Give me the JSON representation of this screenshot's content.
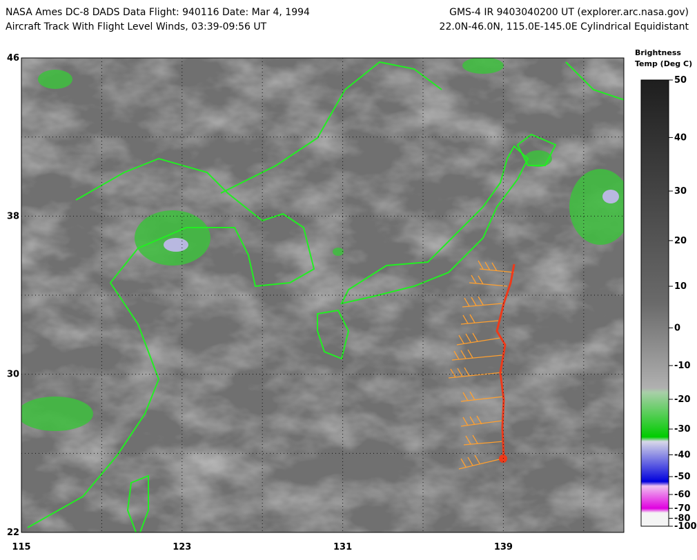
{
  "header": {
    "left_line1": "NASA Ames DC-8 DADS Data  Flight: 940116  Date: Mar 4, 1994",
    "left_line2": "Aircraft Track With Flight Level Winds, 03:39-09:56 UT",
    "right_line1": "GMS-4 IR 9403040200 UT (explorer.arc.nasa.gov)",
    "right_line2": "22.0N-46.0N, 115.0E-145.0E Cylindrical Equidistant"
  },
  "map": {
    "lat_range": [
      22,
      46
    ],
    "lon_range": [
      115,
      145
    ],
    "lat_ticks": [
      46,
      38,
      30,
      22
    ],
    "lon_ticks": [
      115,
      123,
      131,
      139
    ]
  },
  "colorbar": {
    "title_line1": "Brightness",
    "title_line2": "Temp (Deg C)",
    "range": [
      50,
      -100
    ],
    "ticks": [
      50,
      40,
      30,
      20,
      10,
      0,
      -10,
      -20,
      -30,
      -40,
      -50,
      -60,
      -70,
      -80,
      -100
    ]
  }
}
